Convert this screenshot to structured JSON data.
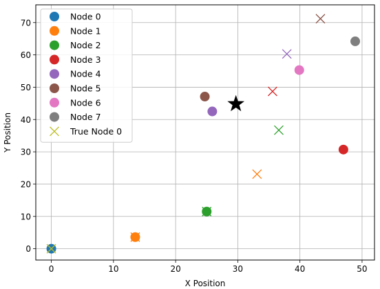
{
  "chart_data": {
    "type": "scatter",
    "title": "",
    "xlabel": "X Position",
    "ylabel": "Y Position",
    "xlim": [
      -2.5,
      52
    ],
    "ylim": [
      -3.5,
      75.5
    ],
    "xticks": [
      0,
      10,
      20,
      30,
      40,
      50
    ],
    "yticks": [
      0,
      10,
      20,
      30,
      40,
      50,
      60,
      70
    ],
    "grid": true,
    "legend": "top-left",
    "estimated": [
      {
        "name": "Node 0",
        "color": "#1f77b4",
        "x": 0.0,
        "y": 0.0
      },
      {
        "name": "Node 1",
        "color": "#ff7f0e",
        "x": 13.5,
        "y": 3.6
      },
      {
        "name": "Node 2",
        "color": "#2ca02c",
        "x": 25.0,
        "y": 11.5
      },
      {
        "name": "Node 3",
        "color": "#d62728",
        "x": 47.0,
        "y": 30.7
      },
      {
        "name": "Node 4",
        "color": "#9467bd",
        "x": 25.9,
        "y": 42.5
      },
      {
        "name": "Node 5",
        "color": "#8c564b",
        "x": 24.7,
        "y": 47.1
      },
      {
        "name": "Node 6",
        "color": "#e377c2",
        "x": 39.9,
        "y": 55.3
      },
      {
        "name": "Node 7",
        "color": "#7f7f7f",
        "x": 48.9,
        "y": 64.2
      }
    ],
    "true_positions": [
      {
        "color": "#bcbd22",
        "x": 0.0,
        "y": 0.0
      },
      {
        "color": "#ff7f0e",
        "x": 13.5,
        "y": 3.6
      },
      {
        "color": "#2ca02c",
        "x": 25.0,
        "y": 11.5
      },
      {
        "color": "#ff7f0e",
        "x": 33.1,
        "y": 23.1
      },
      {
        "color": "#2ca02c",
        "x": 36.6,
        "y": 36.7
      },
      {
        "color": "#d62728",
        "x": 35.6,
        "y": 48.7
      },
      {
        "color": "#9467bd",
        "x": 37.9,
        "y": 60.3
      },
      {
        "color": "#8c564b",
        "x": 43.3,
        "y": 71.2
      }
    ],
    "center_star": {
      "color": "#000000",
      "x": 29.7,
      "y": 44.8
    },
    "legend_entries": [
      {
        "label": "Node 0",
        "color": "#1f77b4",
        "marker": "circle"
      },
      {
        "label": "Node 1",
        "color": "#ff7f0e",
        "marker": "circle"
      },
      {
        "label": "Node 2",
        "color": "#2ca02c",
        "marker": "circle"
      },
      {
        "label": "Node 3",
        "color": "#d62728",
        "marker": "circle"
      },
      {
        "label": "Node 4",
        "color": "#9467bd",
        "marker": "circle"
      },
      {
        "label": "Node 5",
        "color": "#8c564b",
        "marker": "circle"
      },
      {
        "label": "Node 6",
        "color": "#e377c2",
        "marker": "circle"
      },
      {
        "label": "Node 7",
        "color": "#7f7f7f",
        "marker": "circle"
      },
      {
        "label": "True Node 0",
        "color": "#bcbd22",
        "marker": "x"
      }
    ]
  }
}
